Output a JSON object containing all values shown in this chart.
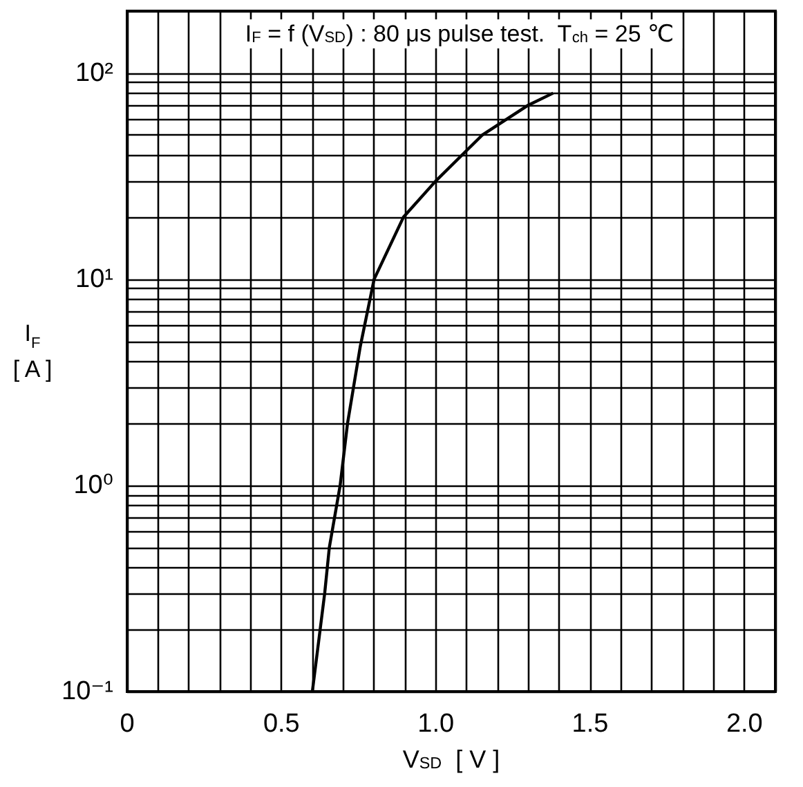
{
  "chart_data": {
    "type": "line",
    "title": "I$_{F}$ = f (V$_{SD}$) : 80 μs pulse test.  T$_{ch}$ = 25 ℃",
    "xlabel": "V$_{SD}$  [ V ]",
    "ylabel": "I$_{F}$\n[ A ]",
    "x": [
      0.6,
      0.64,
      0.655,
      0.69,
      0.714,
      0.755,
      0.8,
      0.895,
      1.0,
      1.15,
      1.3,
      1.38
    ],
    "series": [
      {
        "color": "#000000",
        "values": [
          0.1,
          0.3,
          0.5,
          1,
          2,
          4.7,
          10,
          20,
          30,
          50,
          70,
          80
        ]
      }
    ],
    "xlim": [
      0,
      2.1
    ],
    "xticks": [
      0,
      0.5,
      {
        "value": 1,
        "label": "1.0"
      },
      1.5,
      {
        "value": 2,
        "label": "2.0"
      }
    ],
    "ylim": [
      0.1,
      200
    ],
    "yticks": [
      {
        "value": 0.1,
        "label": "10⁻¹"
      },
      {
        "value": 1,
        "label": "10⁰"
      },
      {
        "value": 10,
        "label": "10¹"
      },
      {
        "value": 100,
        "label": "10²"
      }
    ],
    "log": true,
    "grid": true,
    "marker": "none",
    "line_style": "solid"
  }
}
